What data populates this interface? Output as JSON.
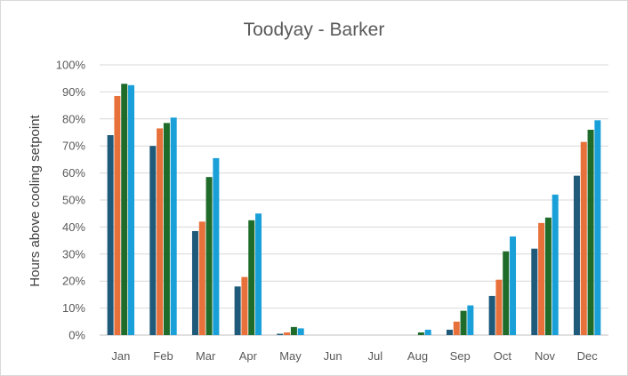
{
  "chart_data": {
    "type": "bar",
    "title": "Toodyay - Barker",
    "xlabel": "",
    "ylabel": "Hours above cooling setpoint",
    "categories": [
      "Jan",
      "Feb",
      "Mar",
      "Apr",
      "May",
      "Jun",
      "Jul",
      "Aug",
      "Sep",
      "Oct",
      "Nov",
      "Dec"
    ],
    "ylim": [
      0,
      1
    ],
    "yticks": [
      "0%",
      "10%",
      "20%",
      "30%",
      "40%",
      "50%",
      "60%",
      "70%",
      "80%",
      "90%",
      "100%"
    ],
    "grid": true,
    "legend": "none",
    "series": [
      {
        "color": "#1f5a7a",
        "values": [
          0.74,
          0.7,
          0.385,
          0.18,
          0.005,
          0,
          0,
          0,
          0.02,
          0.145,
          0.32,
          0.59
        ]
      },
      {
        "color": "#e8703a",
        "values": [
          0.885,
          0.765,
          0.42,
          0.215,
          0.01,
          0,
          0,
          0,
          0.05,
          0.205,
          0.415,
          0.715
        ]
      },
      {
        "color": "#1e6b2a",
        "values": [
          0.93,
          0.785,
          0.585,
          0.425,
          0.03,
          0,
          0,
          0.01,
          0.09,
          0.31,
          0.435,
          0.76
        ]
      },
      {
        "color": "#1aa0d8",
        "values": [
          0.925,
          0.805,
          0.655,
          0.45,
          0.025,
          0,
          0,
          0.02,
          0.11,
          0.365,
          0.52,
          0.795
        ]
      }
    ]
  }
}
